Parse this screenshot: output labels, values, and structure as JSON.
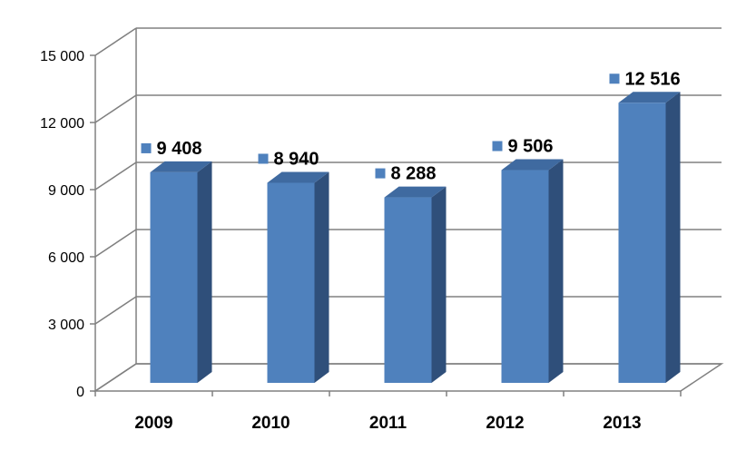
{
  "chart_data": {
    "type": "bar",
    "categories": [
      "2009",
      "2010",
      "2011",
      "2012",
      "2013"
    ],
    "values": [
      9408,
      8940,
      8288,
      9506,
      12516
    ],
    "data_labels": [
      "9 408",
      "8 940",
      "8 288",
      "9 506",
      "12 516"
    ],
    "ylim": [
      0,
      15000
    ],
    "yticks": [
      0,
      3000,
      6000,
      9000,
      12000,
      15000
    ],
    "ytick_labels": [
      "0",
      "3 000",
      "6 000",
      "9 000",
      "12 000",
      "15 000"
    ],
    "grid": true,
    "three_d": true,
    "colors": {
      "bar_front": "#4F81BD",
      "bar_side": "#2F4F7A",
      "bar_top": "#3F6AA0",
      "grid": "#808080",
      "marker": "#4F81BD"
    }
  }
}
